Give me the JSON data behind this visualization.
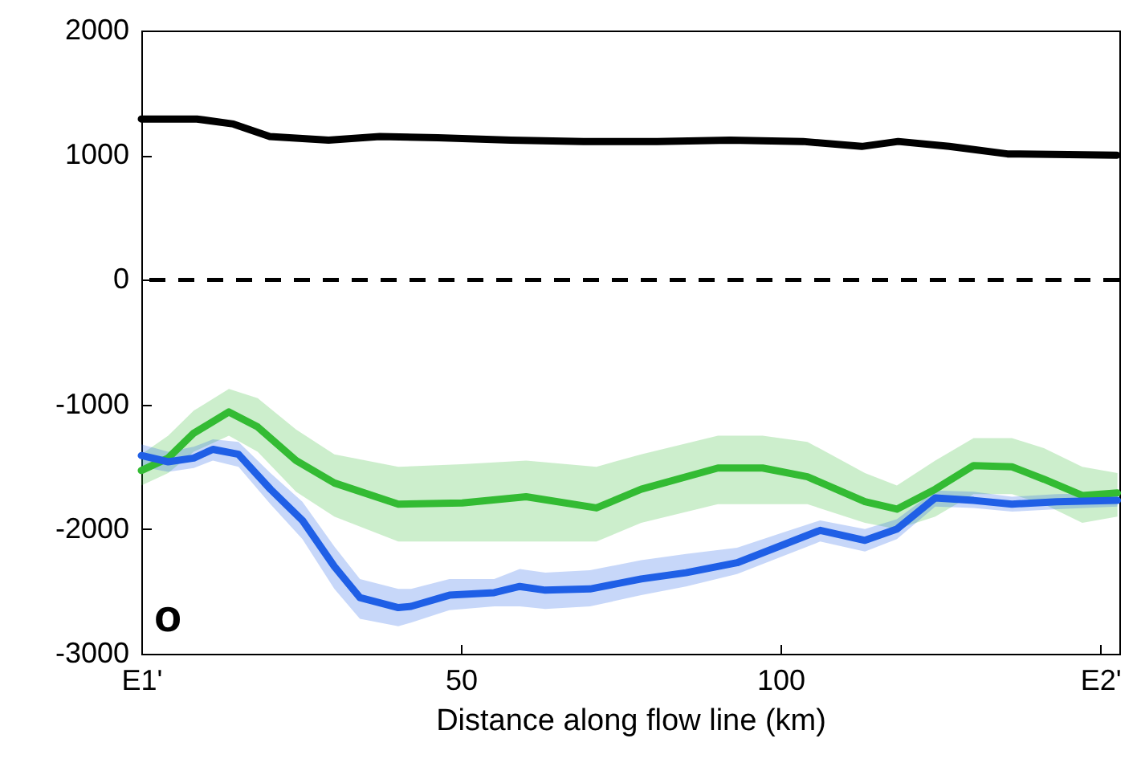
{
  "chart_data": {
    "type": "line",
    "xlabel": "Distance along flow line (km)",
    "xlim": [
      0,
      153
    ],
    "xticks": [
      {
        "value": 0,
        "label": "E1'"
      },
      50,
      100,
      {
        "value": 150,
        "label": "E2'"
      }
    ],
    "ylim": [
      -3000,
      2000
    ],
    "yticks": [
      -3000,
      -2000,
      -1000,
      0,
      1000,
      2000
    ],
    "grid": false,
    "line_style": "solid",
    "marker": "none",
    "annotations": [
      "o"
    ],
    "ref_lines": [
      {
        "axis": "y",
        "value": 0,
        "color": "#000000",
        "line_style": "dashed"
      }
    ],
    "series": [
      {
        "color": "#000000",
        "x": [
          0,
          8.7,
          14.4,
          20.1,
          29.3,
          37.3,
          46.4,
          57.8,
          69.2,
          80.7,
          92.1,
          103.5,
          112.7,
          118.4,
          126.4,
          135.5,
          152.6
        ],
        "values": [
          1290,
          1290,
          1250,
          1150,
          1120,
          1150,
          1140,
          1120,
          1110,
          1110,
          1120,
          1110,
          1070,
          1110,
          1070,
          1010,
          1000
        ]
      },
      {
        "color": "#33bb33",
        "x": [
          0,
          4.2,
          8.2,
          13.7,
          18.2,
          24.2,
          30.2,
          40.2,
          50.2,
          60.2,
          71.2,
          78.2,
          90.2,
          97.2,
          104.2,
          113.2,
          118.2,
          124.2,
          130.2,
          136.2,
          141.2,
          147.2,
          152.7
        ],
        "values": [
          -1530,
          -1430,
          -1230,
          -1060,
          -1180,
          -1450,
          -1630,
          -1800,
          -1790,
          -1740,
          -1830,
          -1680,
          -1510,
          -1510,
          -1580,
          -1780,
          -1840,
          -1680,
          -1490,
          -1500,
          -1600,
          -1730,
          -1710
        ],
        "lower": [
          -1650,
          -1550,
          -1380,
          -1250,
          -1380,
          -1700,
          -1900,
          -2100,
          -2100,
          -2100,
          -2100,
          -1950,
          -1800,
          -1800,
          -1800,
          -1950,
          -2000,
          -1900,
          -1720,
          -1720,
          -1800,
          -1950,
          -1900
        ],
        "upper": [
          -1400,
          -1250,
          -1050,
          -875,
          -950,
          -1200,
          -1400,
          -1500,
          -1480,
          -1450,
          -1500,
          -1400,
          -1250,
          -1250,
          -1300,
          -1550,
          -1650,
          -1450,
          -1270,
          -1270,
          -1350,
          -1500,
          -1550
        ]
      },
      {
        "color": "#1f5fe6",
        "x": [
          0,
          4.2,
          8.2,
          11.2,
          15.2,
          20.2,
          25.2,
          30.2,
          34.2,
          40.2,
          42.2,
          48.2,
          55.2,
          59.2,
          63.2,
          70.2,
          78.2,
          85.2,
          93.2,
          100.2,
          106.2,
          113.2,
          118.2,
          124.2,
          130.2,
          136.2,
          143.2,
          152.7
        ],
        "values": [
          -1410,
          -1460,
          -1430,
          -1360,
          -1400,
          -1680,
          -1930,
          -2300,
          -2550,
          -2630,
          -2620,
          -2530,
          -2510,
          -2460,
          -2490,
          -2480,
          -2400,
          -2350,
          -2270,
          -2130,
          -2010,
          -2090,
          -2000,
          -1750,
          -1770,
          -1800,
          -1780,
          -1770
        ],
        "lower": [
          -1500,
          -1540,
          -1510,
          -1450,
          -1500,
          -1800,
          -2080,
          -2480,
          -2720,
          -2780,
          -2750,
          -2650,
          -2620,
          -2620,
          -2640,
          -2620,
          -2530,
          -2460,
          -2360,
          -2220,
          -2100,
          -2180,
          -2080,
          -1820,
          -1830,
          -1860,
          -1840,
          -1820
        ],
        "upper": [
          -1320,
          -1380,
          -1340,
          -1280,
          -1300,
          -1550,
          -1780,
          -2140,
          -2400,
          -2480,
          -2480,
          -2400,
          -2400,
          -2320,
          -2350,
          -2330,
          -2250,
          -2200,
          -2150,
          -2030,
          -1930,
          -2000,
          -1920,
          -1690,
          -1700,
          -1740,
          -1720,
          -1710
        ]
      }
    ]
  }
}
